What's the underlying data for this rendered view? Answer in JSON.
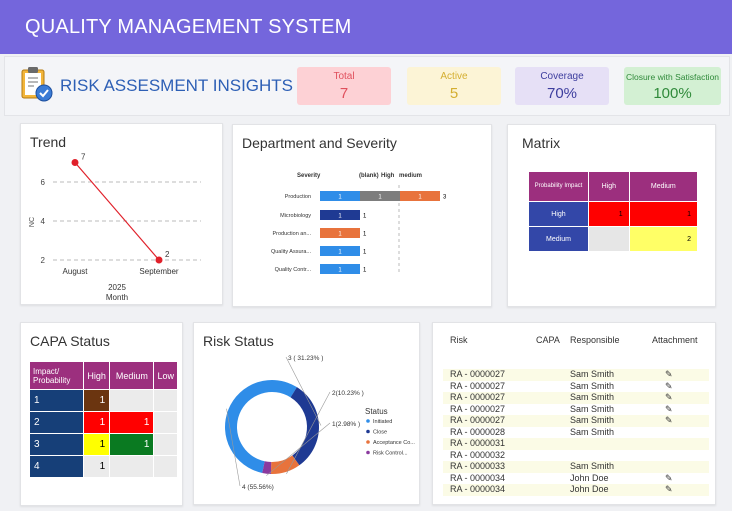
{
  "header": {
    "title": "QUALITY MANAGEMENT SYSTEM"
  },
  "subbar": {
    "title": "RISK ASSESMENT INSIGHTS"
  },
  "kpis": [
    {
      "label": "Total",
      "value": "7",
      "bg": "#fdd1d5",
      "fg": "#e0505d"
    },
    {
      "label": "Active",
      "value": "5",
      "bg": "#fcf4d6",
      "fg": "#d4ae30"
    },
    {
      "label": "Coverage",
      "value": "70%",
      "bg": "#e6e0f6",
      "fg": "#3d3d9e"
    },
    {
      "label": "Closure with Satisfaction",
      "value": "100%",
      "bg": "#d3f0d3",
      "fg": "#2f8a3a"
    }
  ],
  "trend": {
    "title": "Trend",
    "chart_data": {
      "type": "line",
      "x": [
        "August",
        "September"
      ],
      "values": [
        7,
        2
      ],
      "ylabel": "NC",
      "xlabel_year": "2025",
      "xlabel": "Month",
      "yticks": [
        "2",
        "4",
        "6"
      ],
      "point_labels": [
        "7",
        "2"
      ]
    }
  },
  "dept": {
    "title": "Department and Severity",
    "chart_data": {
      "type": "bar",
      "legend": [
        "Severity",
        "(blank)",
        "High",
        "medium"
      ],
      "categories": [
        "Production",
        "Microbiology",
        "Production an...",
        "Quality Assura...",
        "Quality Contr..."
      ],
      "series": [
        {
          "name": "(blank)",
          "values": [
            1,
            1,
            1,
            1,
            1
          ],
          "colors": [
            "#2f8de8",
            "#1f3a93",
            "#e8733c",
            "#2f8de8",
            "#2f8de8"
          ]
        },
        {
          "name": "High",
          "values": [
            1,
            0,
            0,
            0,
            0
          ],
          "colors": [
            "#7d7d7d"
          ]
        },
        {
          "name": "medium",
          "values": [
            1,
            0,
            0,
            0,
            0
          ],
          "colors": [
            "#e8733c"
          ]
        }
      ],
      "totals": [
        "3",
        "1",
        "1",
        "1",
        "1"
      ]
    }
  },
  "matrix": {
    "title": "Matrix",
    "corner": "Probability Impact",
    "cols": [
      "High",
      "Medium"
    ],
    "rows": [
      {
        "label": "High",
        "cells": [
          "1",
          "1"
        ],
        "colors": [
          "#ff0000",
          "#ff0000"
        ]
      },
      {
        "label": "Medium",
        "cells": [
          "",
          "2"
        ],
        "colors": [
          "#e6e6e6",
          "#ffff66"
        ]
      }
    ]
  },
  "capa": {
    "title": "CAPA Status",
    "corner": "Impact/ Probability",
    "cols": [
      "High",
      "Medium",
      "Low"
    ],
    "rows": [
      {
        "label": "1",
        "cells": [
          "1",
          "",
          ""
        ],
        "colors": [
          "#6b3510",
          "#ebebeb",
          "#ebebeb"
        ],
        "fg": [
          "#fff",
          "#000",
          "#000"
        ]
      },
      {
        "label": "2",
        "cells": [
          "1",
          "1",
          ""
        ],
        "colors": [
          "#ff0000",
          "#ff0000",
          "#ebebeb"
        ],
        "fg": [
          "#fff",
          "#fff",
          "#000"
        ]
      },
      {
        "label": "3",
        "cells": [
          "1",
          "1",
          ""
        ],
        "colors": [
          "#ffff00",
          "#0a7a21",
          "#ebebeb"
        ],
        "fg": [
          "#000",
          "#fff",
          "#000"
        ]
      },
      {
        "label": "4",
        "cells": [
          "1",
          "",
          ""
        ],
        "colors": [
          "#ebebeb",
          "#ebebeb",
          "#ebebeb"
        ],
        "fg": [
          "#000",
          "#000",
          "#000"
        ]
      }
    ]
  },
  "risk_status": {
    "title": "Risk Status",
    "legend_title": "Status",
    "chart_data": {
      "type": "pie",
      "labels": [
        "Initiated",
        "Close",
        "Acceptance Co...",
        "Risk Control..."
      ],
      "values": [
        55.56,
        31.23,
        10.23,
        2.98
      ],
      "data_labels": [
        "4 (55.56%)",
        "3 ( 31.23% )",
        "2(10.23% )",
        "1(2.98% )"
      ],
      "colors": [
        "#2f8de8",
        "#1f3a93",
        "#e8733c",
        "#8a3a9e"
      ]
    }
  },
  "risk_table": {
    "headers": [
      "Risk",
      "CAPA",
      "Responsible",
      "Attachment"
    ],
    "rows": [
      {
        "risk": "RA - 0000027",
        "resp": "Sam Smith",
        "att": "✎"
      },
      {
        "risk": "RA - 0000027",
        "resp": "Sam Smith",
        "att": "✎"
      },
      {
        "risk": "RA - 0000027",
        "resp": "Sam Smith",
        "att": "✎"
      },
      {
        "risk": "RA - 0000027",
        "resp": "Sam Smith",
        "att": "✎"
      },
      {
        "risk": "RA - 0000027",
        "resp": "Sam Smith",
        "att": "✎"
      },
      {
        "risk": "RA - 0000028",
        "resp": "Sam Smith",
        "att": ""
      },
      {
        "risk": "RA - 0000031",
        "resp": "",
        "att": ""
      },
      {
        "risk": "RA - 0000032",
        "resp": "",
        "att": ""
      },
      {
        "risk": "RA - 0000033",
        "resp": "Sam Smith",
        "att": ""
      },
      {
        "risk": "RA - 0000034",
        "resp": "John Doe",
        "att": "✎"
      },
      {
        "risk": "RA - 0000034",
        "resp": "John Doe",
        "att": "✎"
      }
    ]
  }
}
